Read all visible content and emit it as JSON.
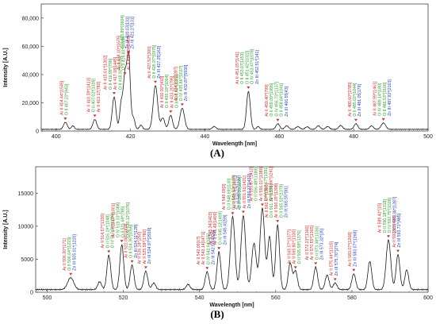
{
  "figure": {
    "panel_a_label": "(A)",
    "panel_b_label": "(B)"
  },
  "colors": {
    "line": "#1a1a1a",
    "ar_label": "#d62728",
    "o_label": "#2ca02c",
    "zn_label": "#1f3fbf",
    "marker": "#c0392b",
    "grid": "#e6e6e6"
  },
  "chart_data": [
    {
      "type": "line",
      "panel": "A",
      "title": "",
      "xlabel": "Wavelength [nm]",
      "ylabel": "Intensity [A.U.]",
      "xlim": [
        396,
        500
      ],
      "ylim": [
        0,
        90000
      ],
      "xticks": [
        400,
        420,
        440,
        460,
        480,
        500
      ],
      "yticks": [
        0,
        20000,
        40000,
        60000,
        80000
      ],
      "ytick_labels": [
        "0",
        "20,000",
        "40,000",
        "60,000",
        "80,000"
      ],
      "grid": false,
      "baseline": 1200,
      "peaks": [
        {
          "x": 402.5,
          "y": 5000,
          "w": 0.5
        },
        {
          "x": 404.5,
          "y": 2500,
          "w": 0.4
        },
        {
          "x": 410.4,
          "y": 7000,
          "w": 0.5
        },
        {
          "x": 415.6,
          "y": 23000,
          "w": 0.5
        },
        {
          "x": 417.5,
          "y": 18000,
          "w": 0.4
        },
        {
          "x": 418.5,
          "y": 37000,
          "w": 0.45
        },
        {
          "x": 419.5,
          "y": 52000,
          "w": 0.45
        },
        {
          "x": 420.8,
          "y": 8000,
          "w": 0.4
        },
        {
          "x": 422.8,
          "y": 3000,
          "w": 0.4
        },
        {
          "x": 426.7,
          "y": 31000,
          "w": 0.6
        },
        {
          "x": 428.7,
          "y": 8000,
          "w": 0.5
        },
        {
          "x": 430.8,
          "y": 10000,
          "w": 0.5
        },
        {
          "x": 433.9,
          "y": 15000,
          "w": 0.6
        },
        {
          "x": 442.5,
          "y": 2000,
          "w": 0.5
        },
        {
          "x": 451.7,
          "y": 27000,
          "w": 0.5
        },
        {
          "x": 454.3,
          "y": 2000,
          "w": 0.4
        },
        {
          "x": 459.6,
          "y": 4000,
          "w": 0.5
        },
        {
          "x": 462.0,
          "y": 2500,
          "w": 0.5
        },
        {
          "x": 465.0,
          "y": 2000,
          "w": 0.5
        },
        {
          "x": 467.5,
          "y": 1800,
          "w": 0.5
        },
        {
          "x": 470.5,
          "y": 2500,
          "w": 0.5
        },
        {
          "x": 473.0,
          "y": 2000,
          "w": 0.5
        },
        {
          "x": 476.5,
          "y": 2800,
          "w": 0.5
        },
        {
          "x": 480.6,
          "y": 4000,
          "w": 0.5
        },
        {
          "x": 484.8,
          "y": 2500,
          "w": 0.5
        },
        {
          "x": 488.0,
          "y": 4500,
          "w": 0.6
        }
      ],
      "annotations": [
        {
          "x": 402.5,
          "lines": [
            {
              "t": "Ar II 404.44*[1545]",
              "k": "ar"
            },
            {
              "t": "O II 407.22*[443]",
              "k": "o"
            }
          ]
        },
        {
          "x": 410.4,
          "lines": [
            {
              "t": "Ar II 410.39*[1413]",
              "k": "ar"
            },
            {
              "t": "O II 407.02*[1328]",
              "k": "o"
            },
            {
              "t": "Ar II 413.17[782]",
              "k": "ar"
            }
          ]
        },
        {
          "x": 415.6,
          "lines": [
            {
              "t": "Ar II 415.61*[1302]",
              "k": "ar"
            },
            {
              "t": "O II 416.99*[796]",
              "k": "o"
            },
            {
              "t": "Ar II 417.18[1445]",
              "k": "ar"
            },
            {
              "t": "O II 418.92*[1039]",
              "k": "o"
            }
          ]
        },
        {
          "x": 418.5,
          "lines": [
            {
              "t": "Ar II 419.10*[1675]",
              "k": "ar"
            },
            {
              "t": "O II 419.83*[1089]",
              "k": "o"
            },
            {
              "t": "Ar II 419.83*[2455]",
              "k": "ar"
            }
          ]
        },
        {
          "x": 419.5,
          "lines": [
            {
              "t": "O II 419.89*[0604]",
              "k": "o"
            },
            {
              "t": "Zn III 420.03[131]",
              "k": "zn"
            },
            {
              "t": "Zn III 421.27[131]",
              "k": "zn"
            }
          ]
        },
        {
          "x": 426.7,
          "lines": [
            {
              "t": "Ar II 427.52*[200]",
              "k": "ar"
            },
            {
              "t": "O II 426.97*[0975]",
              "k": "o"
            },
            {
              "t": "Zn III 427.25[163]",
              "k": "zn"
            }
          ]
        },
        {
          "x": 430.8,
          "lines": [
            {
              "t": "Ar II 430.92*[433]",
              "k": "ar"
            },
            {
              "t": "O II 430.19*[1064]",
              "k": "o"
            },
            {
              "t": "Ar II 433.20*[795]",
              "k": "ar"
            },
            {
              "t": "O II 434.40*[1083]",
              "k": "o"
            }
          ]
        },
        {
          "x": 433.9,
          "lines": [
            {
              "t": "Ar II 434.81*[2287]",
              "k": "ar"
            },
            {
              "t": "O IV 435.86*[1037]",
              "k": "o"
            },
            {
              "t": "Zn III 432.87*[5930]",
              "k": "zn"
            }
          ]
        },
        {
          "x": 451.7,
          "lines": [
            {
              "t": "Ar II 451.65*[141]",
              "k": "ar"
            },
            {
              "t": "O II 453.07[1153]",
              "k": "o"
            },
            {
              "t": "O II 451.42*[1022]",
              "k": "o"
            },
            {
              "t": "O IV 453.47*[1078]",
              "k": "o"
            },
            {
              "t": "Zn III 452.51*[141]",
              "k": "zn"
            }
          ]
        },
        {
          "x": 459.6,
          "lines": [
            {
              "t": "Ar II 459.40*[799]",
              "k": "ar"
            },
            {
              "t": "O II 459.09*[1996]",
              "k": "o"
            },
            {
              "t": "O IV 456.73*[1137]",
              "k": "o"
            },
            {
              "t": "O II 458.64*[1041]",
              "k": "o"
            },
            {
              "t": "Zn III 466.55[43]",
              "k": "zn"
            }
          ]
        },
        {
          "x": 480.6,
          "lines": [
            {
              "t": "Ar II 480.60*[2785]",
              "k": "ar"
            },
            {
              "t": "O II 485.02*[1044]",
              "k": "o"
            },
            {
              "t": "Zn III 481.05[179]",
              "k": "zn"
            }
          ]
        },
        {
          "x": 488.0,
          "lines": [
            {
              "t": "Ar II 487.99*[1461]",
              "k": "ar"
            },
            {
              "t": "O IV 489.14*[180]",
              "k": "o"
            },
            {
              "t": "O II 486.53*[3106]",
              "k": "o"
            },
            {
              "t": "Zn III 487.92*[2163]",
              "k": "zn"
            }
          ]
        }
      ]
    },
    {
      "type": "line",
      "panel": "B",
      "title": "",
      "xlabel": "Wavelength [nm]",
      "ylabel": "Intensity [A.U.]",
      "xlim": [
        497,
        600
      ],
      "ylim": [
        0,
        19000
      ],
      "xticks": [
        500,
        520,
        540,
        560,
        580,
        600
      ],
      "yticks": [
        0,
        5000,
        10000,
        15000
      ],
      "ytick_labels": [
        "0",
        "5000",
        "10000",
        "15000"
      ],
      "grid": false,
      "baseline": 400,
      "peaks": [
        {
          "x": 506.2,
          "y": 1800,
          "w": 0.8
        },
        {
          "x": 513.8,
          "y": 1200,
          "w": 0.5
        },
        {
          "x": 516.2,
          "y": 5200,
          "w": 0.5
        },
        {
          "x": 519.6,
          "y": 6800,
          "w": 0.5
        },
        {
          "x": 522.3,
          "y": 3700,
          "w": 0.5
        },
        {
          "x": 525.9,
          "y": 2800,
          "w": 0.5
        },
        {
          "x": 528.0,
          "y": 1000,
          "w": 0.5
        },
        {
          "x": 537.0,
          "y": 800,
          "w": 0.5
        },
        {
          "x": 542.0,
          "y": 2700,
          "w": 0.5
        },
        {
          "x": 545.1,
          "y": 5700,
          "w": 0.5
        },
        {
          "x": 548.7,
          "y": 11000,
          "w": 0.6
        },
        {
          "x": 551.5,
          "y": 11200,
          "w": 0.6
        },
        {
          "x": 554.3,
          "y": 7000,
          "w": 0.6
        },
        {
          "x": 556.5,
          "y": 12300,
          "w": 0.6
        },
        {
          "x": 558.4,
          "y": 8000,
          "w": 0.5
        },
        {
          "x": 560.5,
          "y": 9800,
          "w": 0.5
        },
        {
          "x": 563.8,
          "y": 4000,
          "w": 0.5
        },
        {
          "x": 565.2,
          "y": 2800,
          "w": 0.5
        },
        {
          "x": 570.5,
          "y": 3400,
          "w": 0.5
        },
        {
          "x": 573.5,
          "y": 2200,
          "w": 0.5
        },
        {
          "x": 575.6,
          "y": 1000,
          "w": 0.5
        },
        {
          "x": 580.5,
          "y": 2400,
          "w": 0.5
        },
        {
          "x": 584.7,
          "y": 4300,
          "w": 0.5
        },
        {
          "x": 589.6,
          "y": 7500,
          "w": 0.6
        },
        {
          "x": 592.1,
          "y": 5300,
          "w": 0.5
        },
        {
          "x": 594.4,
          "y": 3000,
          "w": 0.5
        }
      ],
      "annotations": [
        {
          "x": 506.2,
          "lines": [
            {
              "t": "Ar II 506.20*[171]",
              "k": "ar"
            },
            {
              "t": "O II 506.64*[1223]",
              "k": "o"
            },
            {
              "t": "Zn III 505.01*[1220]",
              "k": "zn"
            }
          ]
        },
        {
          "x": 516.2,
          "lines": [
            {
              "t": "Ar II 514.57*[1330]",
              "k": "ar"
            },
            {
              "t": "O II 516.19*[1048]",
              "k": "o"
            },
            {
              "t": "O IV 517.34*[1156]",
              "k": "o"
            }
          ]
        },
        {
          "x": 519.6,
          "lines": [
            {
              "t": "Ar II 519.07*[1001]",
              "k": "ar"
            },
            {
              "t": "O IV 519.33*[1088]",
              "k": "o"
            },
            {
              "t": "O II 521.69*[785]",
              "k": "o"
            },
            {
              "t": "O IV 520.12*[1076]",
              "k": "o"
            }
          ]
        },
        {
          "x": 522.3,
          "lines": [
            {
              "t": "Ar II 522.08*[1004]",
              "k": "ar"
            },
            {
              "t": "O II 524.35*[1066]",
              "k": "o"
            },
            {
              "t": "Zn III 524.11*[128]",
              "k": "zn"
            }
          ]
        },
        {
          "x": 525.9,
          "lines": [
            {
              "t": "Ar II 526.14*[250]",
              "k": "ar"
            },
            {
              "t": "Ar II 525.58*[1780]",
              "k": "ar"
            },
            {
              "t": "Zn III 524.97*[2918]",
              "k": "zn"
            }
          ]
        },
        {
          "x": 542.0,
          "lines": [
            {
              "t": "Ar II 542.09[17]",
              "k": "ar"
            },
            {
              "t": "Ar II 543.14[1471]",
              "k": "ar"
            },
            {
              "t": "O IV 542.64[156]",
              "k": "o"
            },
            {
              "t": "Zn III 542.59[4838]",
              "k": "zn"
            }
          ]
        },
        {
          "x": 545.1,
          "lines": [
            {
              "t": "Ar II 545.34[1403]",
              "k": "ar"
            },
            {
              "t": "Ar II 545.49[1409]",
              "k": "ar"
            },
            {
              "t": "O IV 545.12[1409]",
              "k": "o"
            },
            {
              "t": "Zn III 545.41[59]",
              "k": "zn"
            }
          ]
        },
        {
          "x": 548.7,
          "lines": [
            {
              "t": "Ar II 549.09[3]",
              "k": "ar"
            },
            {
              "t": "O II 548.69[1130]",
              "k": "o"
            },
            {
              "t": "O IV 549.52*[1130]",
              "k": "o"
            },
            {
              "t": "Zn III 548.67[1137]",
              "k": "zn"
            }
          ]
        },
        {
          "x": 551.5,
          "lines": [
            {
              "t": "Ar II 550.64[1407]",
              "k": "ar"
            },
            {
              "t": "O II 551.10[1139]",
              "k": "o"
            },
            {
              "t": "Ar II 551.51[1421]",
              "k": "ar"
            },
            {
              "t": "Zn III 550.27[1433]",
              "k": "zn"
            }
          ]
        },
        {
          "x": 556.5,
          "lines": [
            {
              "t": "Ar II 555.87*[1412]",
              "k": "ar"
            },
            {
              "t": "O II 556.48*[1389]",
              "k": "o"
            },
            {
              "t": "Ar II 556.01*[1389]",
              "k": "ar"
            },
            {
              "t": "O IV 557.17*[1391]",
              "k": "o"
            },
            {
              "t": "Ar II 558.86*[1241]",
              "k": "ar"
            }
          ]
        },
        {
          "x": 560.5,
          "lines": [
            {
              "t": "Ar II 560.67*[1393]",
              "k": "ar"
            },
            {
              "t": "O II 561.12*[1379]",
              "k": "o"
            },
            {
              "t": "Ar II 560.25*[1398]",
              "k": "ar"
            },
            {
              "t": "O II 565.52*[1379]",
              "k": "o"
            },
            {
              "t": "Zn III 565.55*[81]",
              "k": "zn"
            }
          ]
        },
        {
          "x": 565.2,
          "lines": [
            {
              "t": "Ar II 565.07*[1377]",
              "k": "ar"
            },
            {
              "t": "Ar II 565.80*[1330]",
              "k": "ar"
            },
            {
              "t": "O II 565.58*[1376]",
              "k": "o"
            }
          ]
        },
        {
          "x": 570.5,
          "lines": [
            {
              "t": "Ar II 572.23*[1360]",
              "k": "ar"
            },
            {
              "t": "Ar II 570.55*[1365]",
              "k": "ar"
            },
            {
              "t": "O II 573.38*[1336]",
              "k": "o"
            },
            {
              "t": "Zn III 573.32*[35]",
              "k": "zn"
            }
          ]
        },
        {
          "x": 575.6,
          "lines": [
            {
              "t": "Ar II 575.44*[1315]",
              "k": "ar"
            },
            {
              "t": "Zn III 575.76*[274]",
              "k": "zn"
            }
          ]
        },
        {
          "x": 580.5,
          "lines": [
            {
              "t": "Ar II 583.07*[1268]",
              "k": "ar"
            },
            {
              "t": "Zn III 583.07*[1268]",
              "k": "zn"
            }
          ]
        },
        {
          "x": 589.6,
          "lines": [
            {
              "t": "Ar II 589.42*[15]",
              "k": "ar"
            },
            {
              "t": "O II 590.18*[1318]",
              "k": "o"
            },
            {
              "t": "O IV 592.75*[1328]",
              "k": "o"
            },
            {
              "t": "Zn III 593.38*[1287]",
              "k": "zn"
            }
          ]
        },
        {
          "x": 592.1,
          "lines": [
            {
              "t": "Ar II 592.95*[490]",
              "k": "ar"
            },
            {
              "t": "Zn III 593.71*[485]",
              "k": "zn"
            }
          ]
        }
      ]
    }
  ]
}
